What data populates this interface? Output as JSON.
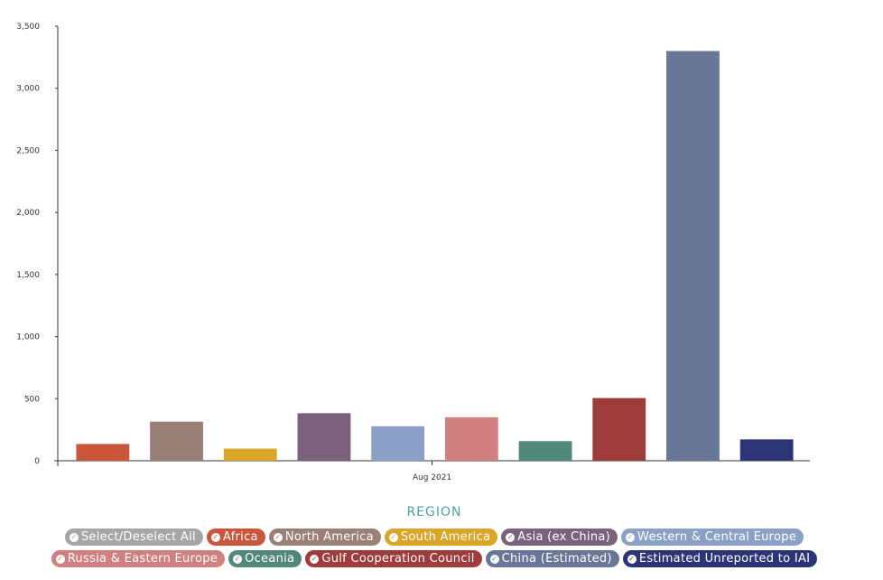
{
  "chart_data": {
    "type": "bar",
    "x_category": "Aug 2021",
    "ylim": [
      0,
      3500
    ],
    "y_ticks": [
      "0",
      "500",
      "1,000",
      "1,500",
      "2,000",
      "2,500",
      "3,000",
      "3,500"
    ],
    "y_tick_values": [
      0,
      500,
      1000,
      1500,
      2000,
      2500,
      3000,
      3500
    ],
    "series": [
      {
        "name": "Africa",
        "value": 135,
        "color": "#c9553a"
      },
      {
        "name": "North America",
        "value": 315,
        "color": "#9a8077"
      },
      {
        "name": "South America",
        "value": 98,
        "color": "#d9a62a"
      },
      {
        "name": "Asia (ex China)",
        "value": 383,
        "color": "#7b617e"
      },
      {
        "name": "Western & Central Europe",
        "value": 278,
        "color": "#8aa0c6"
      },
      {
        "name": "Russia & Eastern Europe",
        "value": 350,
        "color": "#d08080"
      },
      {
        "name": "Oceania",
        "value": 158,
        "color": "#52887a"
      },
      {
        "name": "Gulf Cooperation Council",
        "value": 505,
        "color": "#9e3b3b"
      },
      {
        "name": "China (Estimated)",
        "value": 3300,
        "color": "#687697"
      },
      {
        "name": "Estimated Unreported to IAI",
        "value": 172,
        "color": "#2b3576"
      }
    ]
  },
  "legend": {
    "title": "REGION",
    "select_all_label": "Select/Deselect All",
    "select_all_color": "#a6a6a6",
    "row1": [
      "Africa",
      "North America",
      "South America",
      "Asia (ex China)",
      "Western & Central Europe"
    ],
    "row2": [
      "Russia & Eastern Europe",
      "Oceania",
      "Gulf Cooperation Council",
      "China (Estimated)",
      "Estimated Unreported to IAI"
    ]
  }
}
